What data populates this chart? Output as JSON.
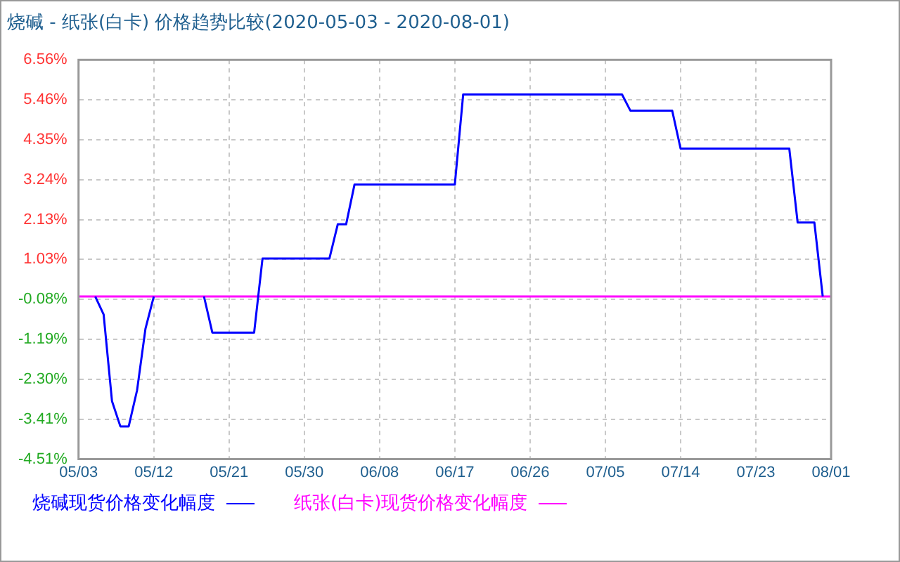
{
  "chart_data": {
    "type": "line",
    "title": "烧碱 - 纸张(白卡) 价格趋势比较(2020-05-03 - 2020-08-01)",
    "series": [
      {
        "name": "烧碱现货价格变化幅度",
        "color": "#0000ff",
        "x": [
          "2020-05-05",
          "2020-05-06",
          "2020-05-07",
          "2020-05-08",
          "2020-05-09",
          "2020-05-10",
          "2020-05-11",
          "2020-05-12",
          "2020-05-15",
          "2020-05-18",
          "2020-05-19",
          "2020-05-24",
          "2020-05-25",
          "2020-06-02",
          "2020-06-03",
          "2020-06-04",
          "2020-06-05",
          "2020-06-17",
          "2020-06-18",
          "2020-07-07",
          "2020-07-08",
          "2020-07-13",
          "2020-07-14",
          "2020-07-27",
          "2020-07-28",
          "2020-07-30",
          "2020-07-31"
        ],
        "values": [
          0,
          -0.5,
          -2.9,
          -3.6,
          -3.6,
          -2.6,
          -0.9,
          0,
          null,
          0,
          -1.0,
          -1.0,
          1.05,
          1.05,
          2.0,
          2.0,
          3.1,
          3.1,
          5.6,
          5.6,
          5.15,
          5.15,
          4.1,
          4.1,
          2.05,
          2.05,
          0
        ]
      },
      {
        "name": "纸张(白卡)现货价格变化幅度",
        "color": "#ff00ff",
        "x": [
          "2020-05-03",
          "2020-08-01"
        ],
        "values": [
          0,
          0
        ]
      }
    ],
    "xlim": [
      "2020-05-03",
      "2020-08-01"
    ],
    "xticks": [
      {
        "value": "2020-05-03",
        "label": "05/03"
      },
      {
        "value": "2020-05-12",
        "label": "05/12"
      },
      {
        "value": "2020-05-21",
        "label": "05/21"
      },
      {
        "value": "2020-05-30",
        "label": "05/30"
      },
      {
        "value": "2020-06-08",
        "label": "06/08"
      },
      {
        "value": "2020-06-17",
        "label": "06/17"
      },
      {
        "value": "2020-06-26",
        "label": "06/26"
      },
      {
        "value": "2020-07-05",
        "label": "07/05"
      },
      {
        "value": "2020-07-14",
        "label": "07/14"
      },
      {
        "value": "2020-07-23",
        "label": "07/23"
      },
      {
        "value": "2020-08-01",
        "label": "08/01"
      }
    ],
    "ylim": [
      -4.51,
      6.56
    ],
    "yticks": [
      {
        "value": 6.56,
        "label": "6.56%"
      },
      {
        "value": 5.46,
        "label": "5.46%"
      },
      {
        "value": 4.35,
        "label": "4.35%"
      },
      {
        "value": 3.24,
        "label": "3.24%"
      },
      {
        "value": 2.13,
        "label": "2.13%"
      },
      {
        "value": 1.03,
        "label": "1.03%"
      },
      {
        "value": -0.08,
        "label": "-0.08%"
      },
      {
        "value": -1.19,
        "label": "-1.19%"
      },
      {
        "value": -2.3,
        "label": "-2.30%"
      },
      {
        "value": -3.41,
        "label": "-3.41%"
      },
      {
        "value": -4.51,
        "label": "-4.51%"
      }
    ],
    "grid": true,
    "legend": "bottom",
    "marker": "none",
    "line_style": "solid"
  }
}
